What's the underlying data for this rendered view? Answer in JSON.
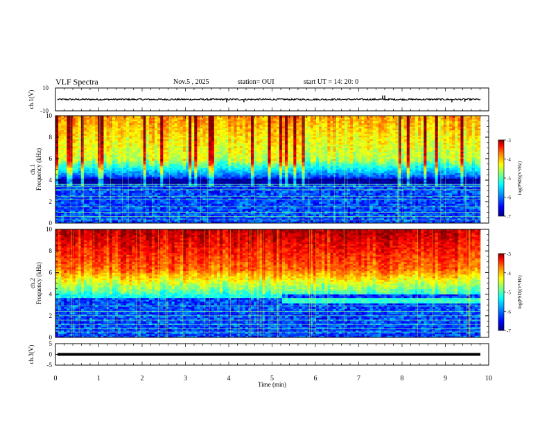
{
  "header": {
    "title": "VLF Spectra",
    "date": "Nov.5  , 2025",
    "station": "station= OUI",
    "start_ut": "start  UT  =   14: 20: 0"
  },
  "colors": {
    "colormap": [
      "#000080",
      "#0000ff",
      "#00a0ff",
      "#00ffff",
      "#80ff80",
      "#ffff00",
      "#ff8000",
      "#ff0000",
      "#800000"
    ]
  },
  "chart_data": [
    {
      "type": "line",
      "name": "ch1-waveform",
      "ylabel": "ch.1(V)",
      "ylim": [
        -10,
        10
      ],
      "yticks": [
        10,
        -10
      ],
      "baseline": 0,
      "spikes": [
        {
          "x": 3.95,
          "y": -2.5
        },
        {
          "x": 4.35,
          "y": -2.5
        },
        {
          "x": 7.55,
          "y": 3.5
        },
        {
          "x": 7.6,
          "y": 3.5
        },
        {
          "x": 9.15,
          "y": -2.5
        },
        {
          "x": 9.45,
          "y": -2.0
        }
      ]
    },
    {
      "type": "heatmap",
      "name": "ch1-spectrogram",
      "ylabel_line1": "ch.1",
      "ylabel_line2": "Frequency (kHz)",
      "ylim": [
        0,
        10
      ],
      "yticks": [
        "0",
        "2",
        "4",
        "6",
        "8",
        "10"
      ],
      "colorbar": {
        "label": "log(PSD)(V²/Hz)",
        "ticks": [
          "-3",
          "-4",
          "-5",
          "-6",
          "-7"
        ],
        "range": [
          -7,
          -3
        ]
      }
    },
    {
      "type": "heatmap",
      "name": "ch2-spectrogram",
      "ylabel_line1": "ch.2",
      "ylabel_line2": "Frequency (kHz)",
      "ylim": [
        0,
        10
      ],
      "yticks": [
        "0",
        "2",
        "4",
        "6",
        "8",
        "10"
      ],
      "colorbar": {
        "label": "log(PSD)(V²/Hz)",
        "ticks": [
          "-3",
          "-4",
          "-5",
          "-6",
          "-7"
        ],
        "range": [
          -7,
          -3
        ]
      }
    },
    {
      "type": "line",
      "name": "ch3-waveform",
      "ylabel": "ch.3(V)",
      "ylim": [
        -5,
        5
      ],
      "yticks": [
        "5",
        "0",
        "-5"
      ],
      "constant_value": 0
    }
  ],
  "xaxis": {
    "label": "Time  (min)",
    "ticks": [
      "0",
      "1",
      "2",
      "3",
      "4",
      "5",
      "6",
      "7",
      "8",
      "9",
      "10"
    ],
    "range": [
      0,
      10
    ]
  }
}
